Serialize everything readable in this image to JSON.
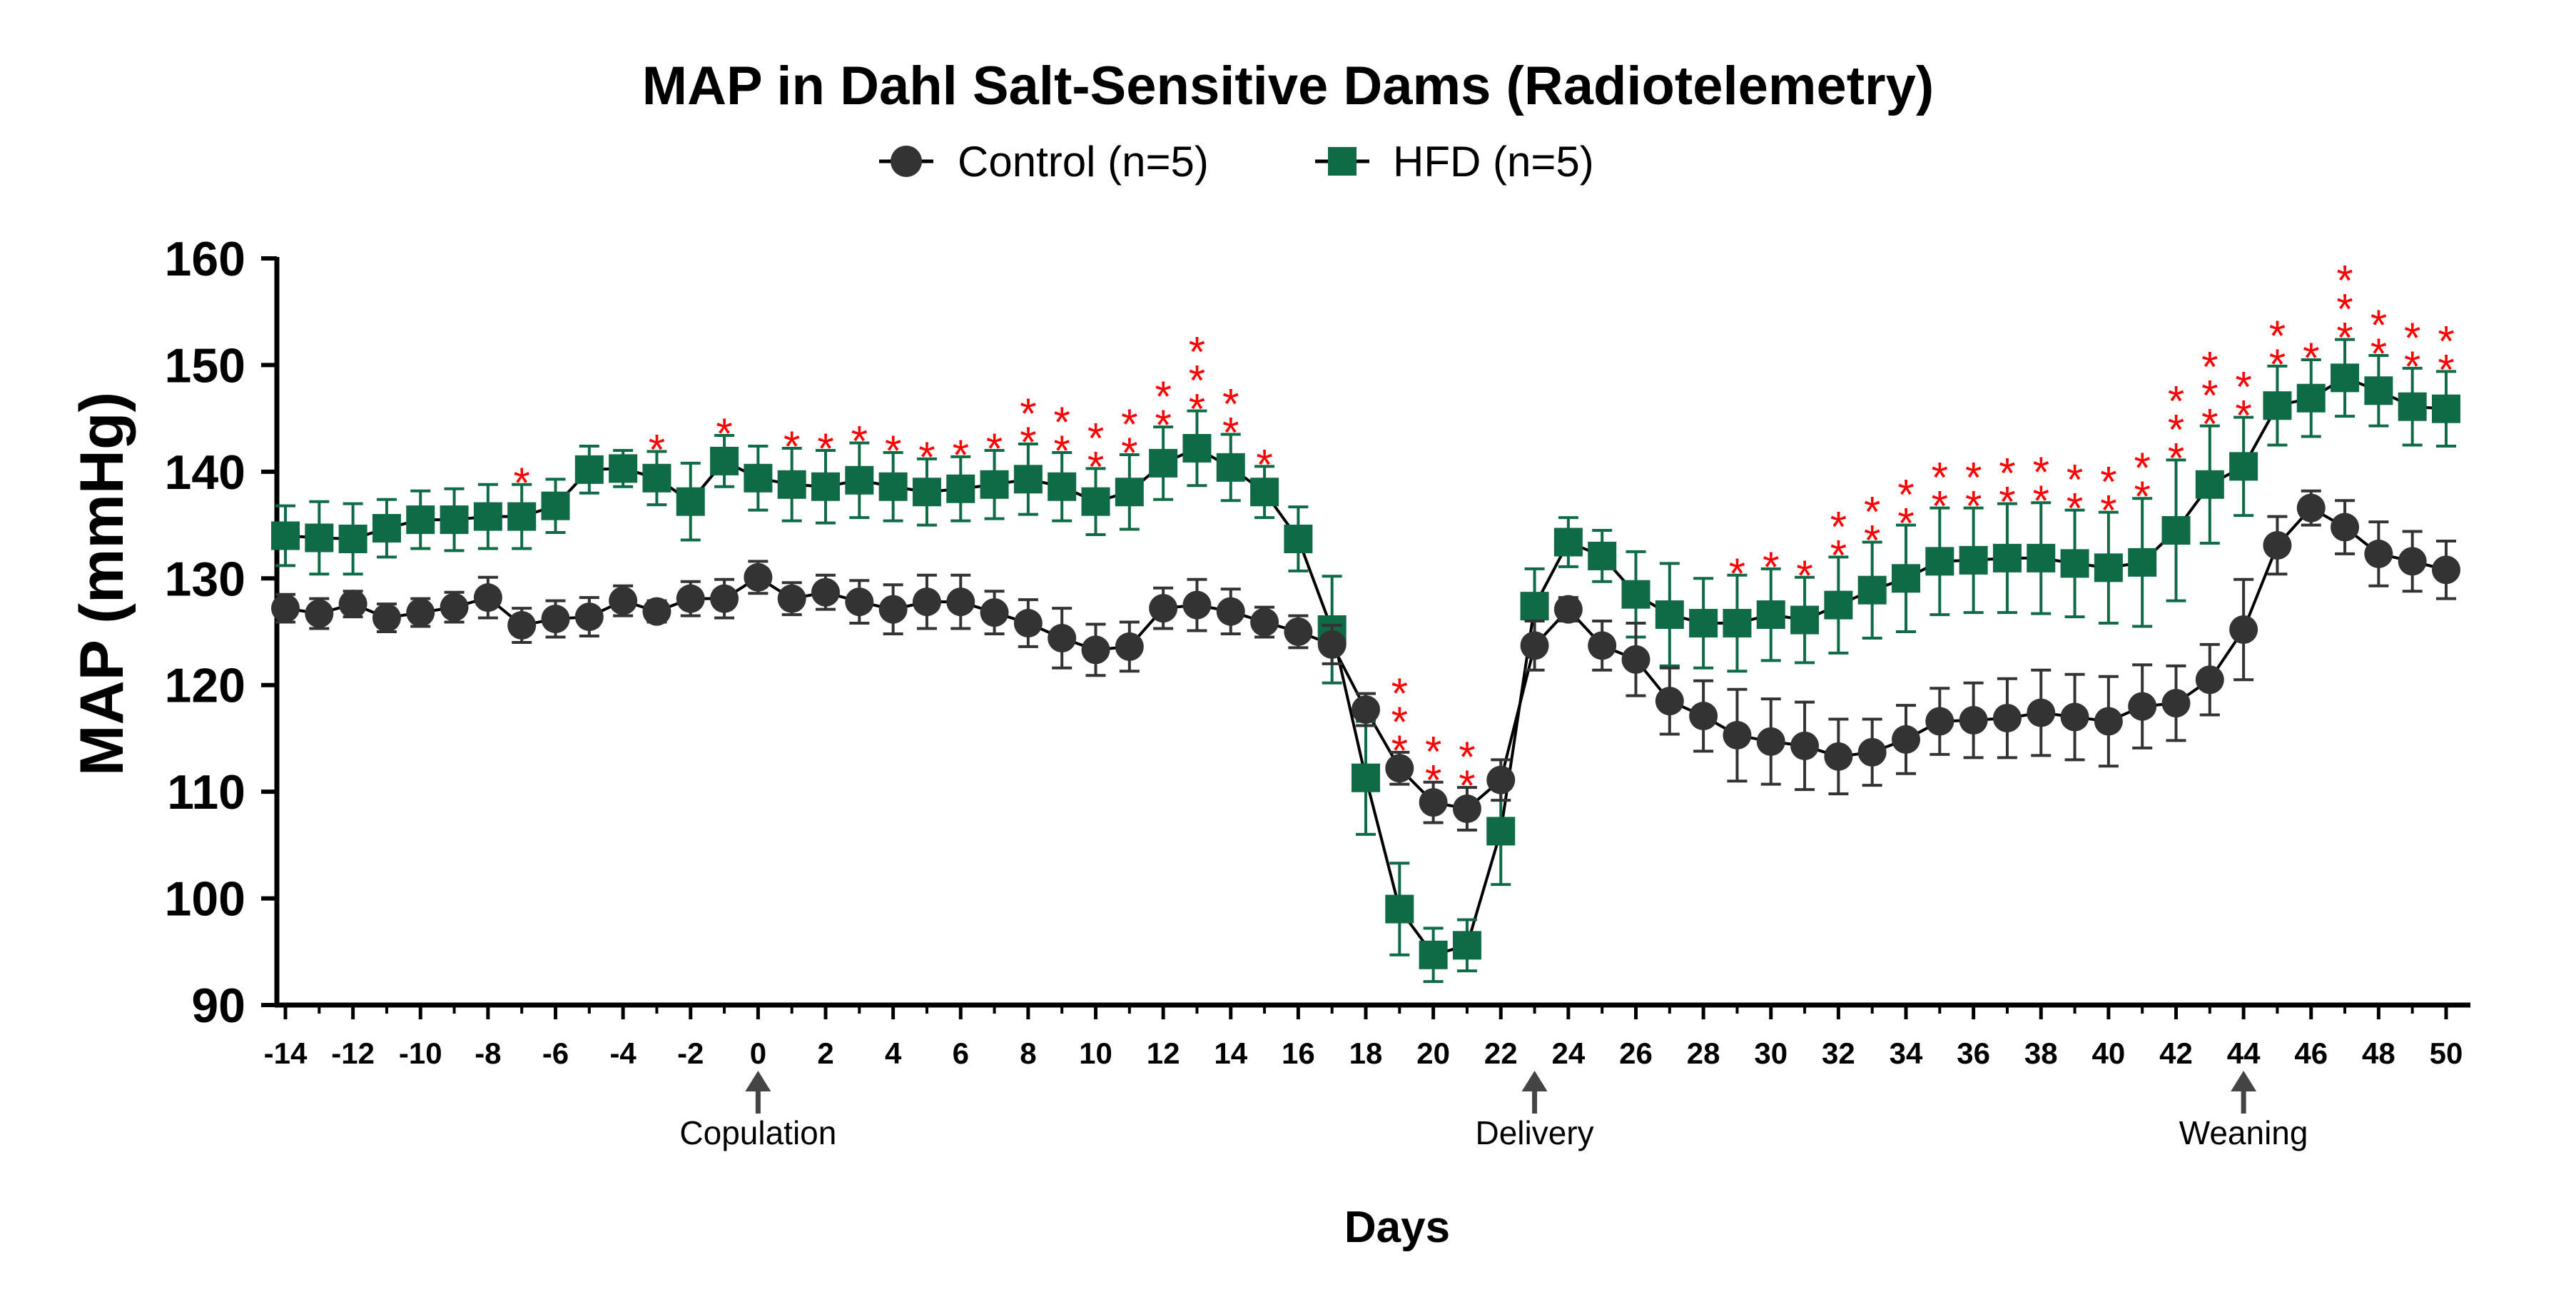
{
  "chart_data": {
    "type": "line",
    "title": "MAP in Dahl Salt-Sensitive Dams (Radiotelemetry)",
    "xlabel": "Days",
    "ylabel": "MAP (mmHg)",
    "xlim": [
      -14,
      50
    ],
    "ylim": [
      90,
      160
    ],
    "yticks": [
      90,
      100,
      110,
      120,
      130,
      140,
      150,
      160
    ],
    "xtick_labels": [
      "-14",
      "-12",
      "-10",
      "-8",
      "-6",
      "-4",
      "-2",
      "0",
      "2",
      "4",
      "6",
      "8",
      "10",
      "12",
      "14",
      "16",
      "18",
      "20",
      "22",
      "24",
      "26",
      "28",
      "30",
      "32",
      "34",
      "36",
      "38",
      "40",
      "42",
      "44",
      "46",
      "48",
      "50"
    ],
    "x": [
      -14,
      -13,
      -12,
      -11,
      -10,
      -9,
      -8,
      -7,
      -6,
      -5,
      -4,
      -3,
      -2,
      -1,
      0,
      1,
      2,
      3,
      4,
      5,
      6,
      7,
      8,
      9,
      10,
      11,
      12,
      13,
      14,
      15,
      16,
      17,
      18,
      19,
      20,
      21,
      22,
      23,
      24,
      25,
      26,
      27,
      28,
      29,
      30,
      31,
      32,
      33,
      34,
      35,
      36,
      37,
      38,
      39,
      40,
      41,
      42,
      43,
      44,
      45,
      46,
      47,
      48,
      49,
      50
    ],
    "series": [
      {
        "name": "Control (n=5)",
        "color": "#333333",
        "marker": "circle",
        "values": [
          127.2,
          126.7,
          127.6,
          126.3,
          126.8,
          127.3,
          128.2,
          125.6,
          126.2,
          126.4,
          127.9,
          126.9,
          128.1,
          128.1,
          130.1,
          128.1,
          128.7,
          127.8,
          127.1,
          127.8,
          127.8,
          126.8,
          125.8,
          124.4,
          123.3,
          123.6,
          127.2,
          127.5,
          126.9,
          125.9,
          125.0,
          123.8,
          117.7,
          112.2,
          109.0,
          108.4,
          111.1,
          123.7,
          127.1,
          123.7,
          122.4,
          118.5,
          117.1,
          115.3,
          114.7,
          114.3,
          113.3,
          113.7,
          114.9,
          116.6,
          116.7,
          116.9,
          117.4,
          117.0,
          116.6,
          118.0,
          118.3,
          120.5,
          125.2,
          133.1,
          136.6,
          134.8,
          132.3,
          131.6,
          130.8
        ],
        "errors": [
          1.3,
          1.4,
          1.2,
          1.3,
          1.3,
          1.4,
          1.9,
          1.6,
          1.7,
          1.8,
          1.4,
          1.0,
          1.6,
          1.8,
          1.5,
          1.5,
          1.6,
          2.0,
          2.3,
          2.5,
          2.5,
          2.0,
          2.2,
          2.8,
          2.4,
          2.3,
          1.9,
          2.4,
          2.1,
          1.4,
          1.5,
          1.8,
          1.5,
          1.5,
          1.9,
          2.0,
          1.9,
          2.3,
          1.1,
          2.3,
          3.4,
          3.1,
          3.3,
          4.3,
          4.0,
          4.1,
          3.5,
          3.1,
          3.2,
          3.1,
          3.5,
          3.7,
          4.0,
          4.0,
          4.2,
          3.9,
          3.5,
          3.3,
          4.7,
          2.7,
          1.6,
          2.5,
          3.0,
          2.8,
          2.7
        ]
      },
      {
        "name": "HFD (n=5)",
        "color": "#0f6b46",
        "marker": "square",
        "values": [
          134.0,
          133.8,
          133.7,
          134.7,
          135.5,
          135.5,
          135.8,
          135.8,
          136.8,
          140.2,
          140.3,
          139.4,
          137.2,
          141.0,
          139.4,
          138.8,
          138.6,
          139.2,
          138.6,
          138.1,
          138.4,
          138.8,
          139.3,
          138.6,
          137.2,
          138.1,
          140.8,
          142.2,
          140.4,
          138.1,
          133.7,
          125.2,
          111.3,
          99.0,
          94.7,
          95.6,
          106.3,
          127.4,
          133.4,
          132.1,
          128.5,
          126.6,
          125.8,
          125.8,
          126.6,
          126.1,
          127.5,
          128.9,
          130.0,
          131.6,
          131.7,
          131.9,
          131.9,
          131.4,
          131.0,
          131.5,
          134.5,
          138.8,
          140.5,
          146.2,
          146.9,
          148.8,
          147.6,
          146.1,
          145.9
        ],
        "errors": [
          2.8,
          3.4,
          3.3,
          2.7,
          2.7,
          2.9,
          3.0,
          3.0,
          2.5,
          2.2,
          1.7,
          2.5,
          3.6,
          2.4,
          3.0,
          3.4,
          3.4,
          3.5,
          3.2,
          3.1,
          3.0,
          3.2,
          3.3,
          3.2,
          3.1,
          3.5,
          3.4,
          3.5,
          3.1,
          2.4,
          3.0,
          5.0,
          5.3,
          4.3,
          2.5,
          2.4,
          5.0,
          3.5,
          2.3,
          2.4,
          4.0,
          4.8,
          4.2,
          4.5,
          4.3,
          4.0,
          4.5,
          4.5,
          5.0,
          5.0,
          4.9,
          5.1,
          5.2,
          5.0,
          5.2,
          6.0,
          6.6,
          5.5,
          4.6,
          3.7,
          3.6,
          3.6,
          3.3,
          3.6,
          3.5
        ]
      }
    ],
    "significance": {
      "symbol": "*",
      "color": "#ff0000",
      "marks": [
        {
          "day": -7,
          "count": 1
        },
        {
          "day": -3,
          "count": 1
        },
        {
          "day": -1,
          "count": 1
        },
        {
          "day": 1,
          "count": 1
        },
        {
          "day": 2,
          "count": 1
        },
        {
          "day": 3,
          "count": 1
        },
        {
          "day": 4,
          "count": 1
        },
        {
          "day": 5,
          "count": 1
        },
        {
          "day": 6,
          "count": 1
        },
        {
          "day": 7,
          "count": 1
        },
        {
          "day": 8,
          "count": 2
        },
        {
          "day": 9,
          "count": 2
        },
        {
          "day": 10,
          "count": 2
        },
        {
          "day": 11,
          "count": 2
        },
        {
          "day": 12,
          "count": 2
        },
        {
          "day": 13,
          "count": 3
        },
        {
          "day": 14,
          "count": 2
        },
        {
          "day": 15,
          "count": 1
        },
        {
          "day": 19,
          "count": 3
        },
        {
          "day": 20,
          "count": 2
        },
        {
          "day": 21,
          "count": 2
        },
        {
          "day": 29,
          "count": 1
        },
        {
          "day": 30,
          "count": 1
        },
        {
          "day": 31,
          "count": 1
        },
        {
          "day": 32,
          "count": 2
        },
        {
          "day": 33,
          "count": 2
        },
        {
          "day": 34,
          "count": 2
        },
        {
          "day": 35,
          "count": 2
        },
        {
          "day": 36,
          "count": 2
        },
        {
          "day": 37,
          "count": 2
        },
        {
          "day": 38,
          "count": 2
        },
        {
          "day": 39,
          "count": 2
        },
        {
          "day": 40,
          "count": 2
        },
        {
          "day": 41,
          "count": 2
        },
        {
          "day": 42,
          "count": 3
        },
        {
          "day": 43,
          "count": 3
        },
        {
          "day": 44,
          "count": 2
        },
        {
          "day": 45,
          "count": 2
        },
        {
          "day": 46,
          "count": 1
        },
        {
          "day": 47,
          "count": 3
        },
        {
          "day": 48,
          "count": 2
        },
        {
          "day": 49,
          "count": 2
        },
        {
          "day": 50,
          "count": 2
        }
      ]
    },
    "events": [
      {
        "day": 0,
        "label": "Copulation"
      },
      {
        "day": 23,
        "label": "Delivery"
      },
      {
        "day": 44,
        "label": "Weaning"
      }
    ],
    "legend_position": "top-center",
    "grid": false
  }
}
